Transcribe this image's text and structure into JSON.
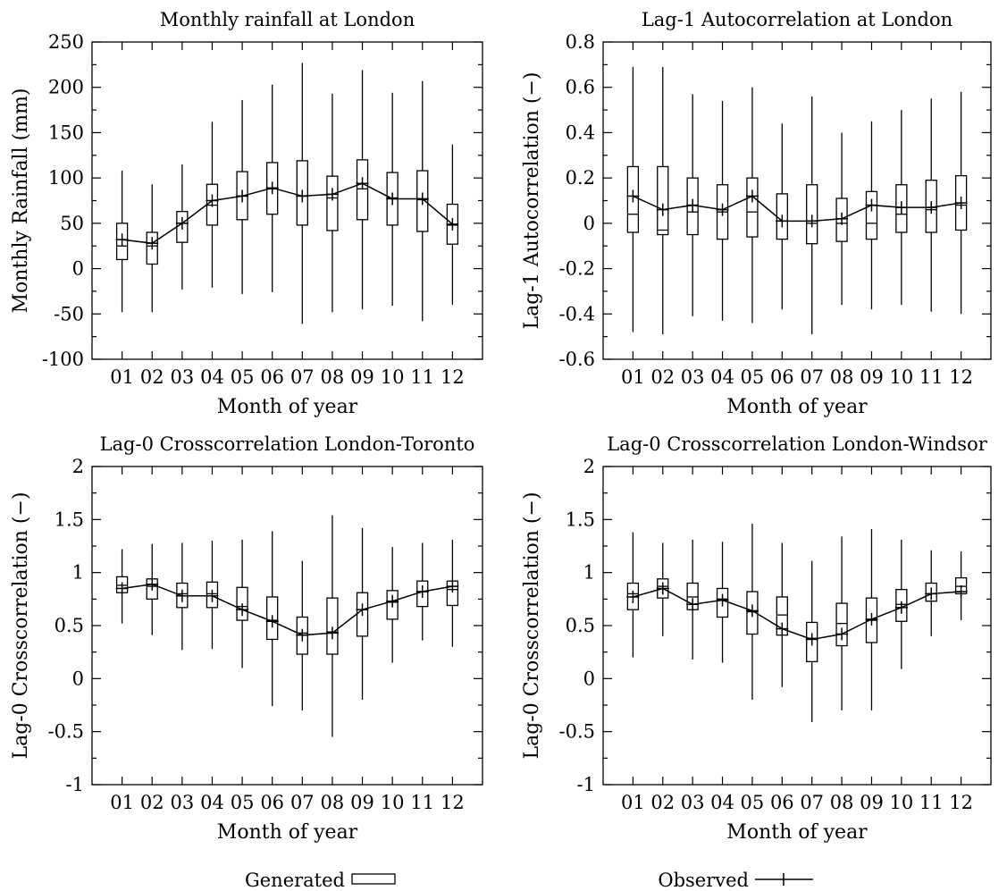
{
  "chart_data": [
    {
      "type": "boxplot",
      "title": "Monthly rainfall at London",
      "xlabel": "Month of year",
      "ylabel": "Monthly Rainfall (mm)",
      "ylim": [
        -100,
        250
      ],
      "yticks": [
        -100,
        -50,
        0,
        50,
        100,
        150,
        200,
        250
      ],
      "yminor": 25,
      "categories": [
        "01",
        "02",
        "03",
        "04",
        "05",
        "06",
        "07",
        "08",
        "09",
        "10",
        "11",
        "12"
      ],
      "generated": [
        {
          "min": -48,
          "q1": 10,
          "median": 25,
          "q3": 50,
          "max": 108
        },
        {
          "min": -48,
          "q1": 5,
          "median": 25,
          "q3": 40,
          "max": 93
        },
        {
          "min": -23,
          "q1": 29,
          "median": 50,
          "q3": 63,
          "max": 115
        },
        {
          "min": -21,
          "q1": 48,
          "median": 70,
          "q3": 93,
          "max": 162
        },
        {
          "min": -28,
          "q1": 54,
          "median": 80,
          "q3": 107,
          "max": 186
        },
        {
          "min": -26,
          "q1": 60,
          "median": 88,
          "q3": 117,
          "max": 203
        },
        {
          "min": -61,
          "q1": 48,
          "median": 80,
          "q3": 119,
          "max": 227
        },
        {
          "min": -48,
          "q1": 42,
          "median": 78,
          "q3": 102,
          "max": 193
        },
        {
          "min": -45,
          "q1": 54,
          "median": 88,
          "q3": 120,
          "max": 219
        },
        {
          "min": -41,
          "q1": 48,
          "median": 78,
          "q3": 106,
          "max": 194
        },
        {
          "min": -58,
          "q1": 41,
          "median": 76,
          "q3": 108,
          "max": 207
        },
        {
          "min": -40,
          "q1": 27,
          "median": 48,
          "q3": 71,
          "max": 137
        }
      ],
      "observed": [
        32,
        28,
        50,
        75,
        80,
        89,
        80,
        82,
        94,
        77,
        77,
        49
      ]
    },
    {
      "type": "boxplot",
      "title": "Lag-1 Autocorrelation at London",
      "xlabel": "Month of year",
      "ylabel": "Lag-1 Autocorrelation (−)",
      "ylim": [
        -0.6,
        0.8
      ],
      "yticks": [
        -0.6,
        -0.4,
        -0.2,
        0,
        0.2,
        0.4,
        0.6,
        0.8
      ],
      "yminor": 0.1,
      "categories": [
        "01",
        "02",
        "03",
        "04",
        "05",
        "06",
        "07",
        "08",
        "09",
        "10",
        "11",
        "12"
      ],
      "generated": [
        {
          "min": -0.48,
          "q1": -0.04,
          "median": 0.04,
          "q3": 0.25,
          "max": 0.69
        },
        {
          "min": -0.49,
          "q1": -0.05,
          "median": -0.03,
          "q3": 0.25,
          "max": 0.69
        },
        {
          "min": -0.41,
          "q1": -0.05,
          "median": 0.05,
          "q3": 0.2,
          "max": 0.57
        },
        {
          "min": -0.43,
          "q1": -0.07,
          "median": 0.05,
          "q3": 0.17,
          "max": 0.54
        },
        {
          "min": -0.44,
          "q1": -0.06,
          "median": 0.05,
          "q3": 0.2,
          "max": 0.6
        },
        {
          "min": -0.38,
          "q1": -0.07,
          "median": 0.01,
          "q3": 0.13,
          "max": 0.44
        },
        {
          "min": -0.49,
          "q1": -0.09,
          "median": 0.0,
          "q3": 0.17,
          "max": 0.56
        },
        {
          "min": -0.36,
          "q1": -0.08,
          "median": 0.0,
          "q3": 0.11,
          "max": 0.4
        },
        {
          "min": -0.38,
          "q1": -0.07,
          "median": 0.0,
          "q3": 0.14,
          "max": 0.45
        },
        {
          "min": -0.36,
          "q1": -0.04,
          "median": 0.04,
          "q3": 0.17,
          "max": 0.5
        },
        {
          "min": -0.39,
          "q1": -0.04,
          "median": 0.06,
          "q3": 0.19,
          "max": 0.55
        },
        {
          "min": -0.4,
          "q1": -0.03,
          "median": 0.08,
          "q3": 0.21,
          "max": 0.58
        }
      ],
      "observed": [
        0.12,
        0.06,
        0.08,
        0.06,
        0.12,
        0.01,
        0.01,
        0.02,
        0.08,
        0.07,
        0.07,
        0.09
      ]
    },
    {
      "type": "boxplot",
      "title": "Lag-0 Crosscorrelation London-Toronto",
      "xlabel": "Month of year",
      "ylabel": "Lag-0 Crosscorrelation (−)",
      "ylim": [
        -1,
        2
      ],
      "yticks": [
        -1,
        -0.5,
        0,
        0.5,
        1,
        1.5,
        2
      ],
      "yminor": 0.25,
      "categories": [
        "01",
        "02",
        "03",
        "04",
        "05",
        "06",
        "07",
        "08",
        "09",
        "10",
        "11",
        "12"
      ],
      "generated": [
        {
          "min": 0.52,
          "q1": 0.81,
          "median": 0.88,
          "q3": 0.96,
          "max": 1.22
        },
        {
          "min": 0.41,
          "q1": 0.75,
          "median": 0.87,
          "q3": 0.94,
          "max": 1.27
        },
        {
          "min": 0.27,
          "q1": 0.67,
          "median": 0.8,
          "q3": 0.9,
          "max": 1.28
        },
        {
          "min": 0.28,
          "q1": 0.67,
          "median": 0.8,
          "q3": 0.91,
          "max": 1.3
        },
        {
          "min": 0.1,
          "q1": 0.55,
          "median": 0.68,
          "q3": 0.86,
          "max": 1.31
        },
        {
          "min": -0.26,
          "q1": 0.37,
          "median": 0.55,
          "q3": 0.77,
          "max": 1.39
        },
        {
          "min": -0.3,
          "q1": 0.23,
          "median": 0.43,
          "q3": 0.58,
          "max": 1.11
        },
        {
          "min": -0.55,
          "q1": 0.23,
          "median": 0.44,
          "q3": 0.76,
          "max": 1.54
        },
        {
          "min": -0.2,
          "q1": 0.4,
          "median": 0.65,
          "q3": 0.81,
          "max": 1.42
        },
        {
          "min": 0.15,
          "q1": 0.56,
          "median": 0.72,
          "q3": 0.83,
          "max": 1.24
        },
        {
          "min": 0.36,
          "q1": 0.68,
          "median": 0.82,
          "q3": 0.92,
          "max": 1.28
        },
        {
          "min": 0.3,
          "q1": 0.69,
          "median": 0.84,
          "q3": 0.92,
          "max": 1.31
        }
      ],
      "observed": [
        0.85,
        0.89,
        0.78,
        0.78,
        0.65,
        0.54,
        0.41,
        0.43,
        0.65,
        0.73,
        0.82,
        0.87
      ]
    },
    {
      "type": "boxplot",
      "title": "Lag-0 Crosscorrelation London-Windsor",
      "xlabel": "Month of year",
      "ylabel": "Lag-0 Crosscorrelation (−)",
      "ylim": [
        -1,
        2
      ],
      "yticks": [
        -1,
        -0.5,
        0,
        0.5,
        1,
        1.5,
        2
      ],
      "yminor": 0.25,
      "categories": [
        "01",
        "02",
        "03",
        "04",
        "05",
        "06",
        "07",
        "08",
        "09",
        "10",
        "11",
        "12"
      ],
      "generated": [
        {
          "min": 0.2,
          "q1": 0.65,
          "median": 0.8,
          "q3": 0.9,
          "max": 1.38
        },
        {
          "min": 0.4,
          "q1": 0.76,
          "median": 0.87,
          "q3": 0.94,
          "max": 1.28
        },
        {
          "min": 0.18,
          "q1": 0.65,
          "median": 0.77,
          "q3": 0.9,
          "max": 1.31
        },
        {
          "min": 0.15,
          "q1": 0.58,
          "median": 0.75,
          "q3": 0.85,
          "max": 1.29
        },
        {
          "min": -0.2,
          "q1": 0.42,
          "median": 0.63,
          "q3": 0.82,
          "max": 1.46
        },
        {
          "min": -0.08,
          "q1": 0.41,
          "median": 0.6,
          "q3": 0.77,
          "max": 1.28
        },
        {
          "min": -0.41,
          "q1": 0.16,
          "median": 0.38,
          "q3": 0.53,
          "max": 1.11
        },
        {
          "min": -0.3,
          "q1": 0.31,
          "median": 0.52,
          "q3": 0.71,
          "max": 1.34
        },
        {
          "min": -0.3,
          "q1": 0.34,
          "median": 0.55,
          "q3": 0.76,
          "max": 1.41
        },
        {
          "min": 0.09,
          "q1": 0.54,
          "median": 0.7,
          "q3": 0.84,
          "max": 1.31
        },
        {
          "min": 0.4,
          "q1": 0.73,
          "median": 0.8,
          "q3": 0.9,
          "max": 1.21
        },
        {
          "min": 0.55,
          "q1": 0.8,
          "median": 0.87,
          "q3": 0.95,
          "max": 1.2
        }
      ],
      "observed": [
        0.77,
        0.85,
        0.7,
        0.74,
        0.64,
        0.47,
        0.37,
        0.42,
        0.56,
        0.67,
        0.8,
        0.82
      ]
    }
  ],
  "legend": {
    "generated_label": "Generated",
    "observed_label": "Observed"
  }
}
